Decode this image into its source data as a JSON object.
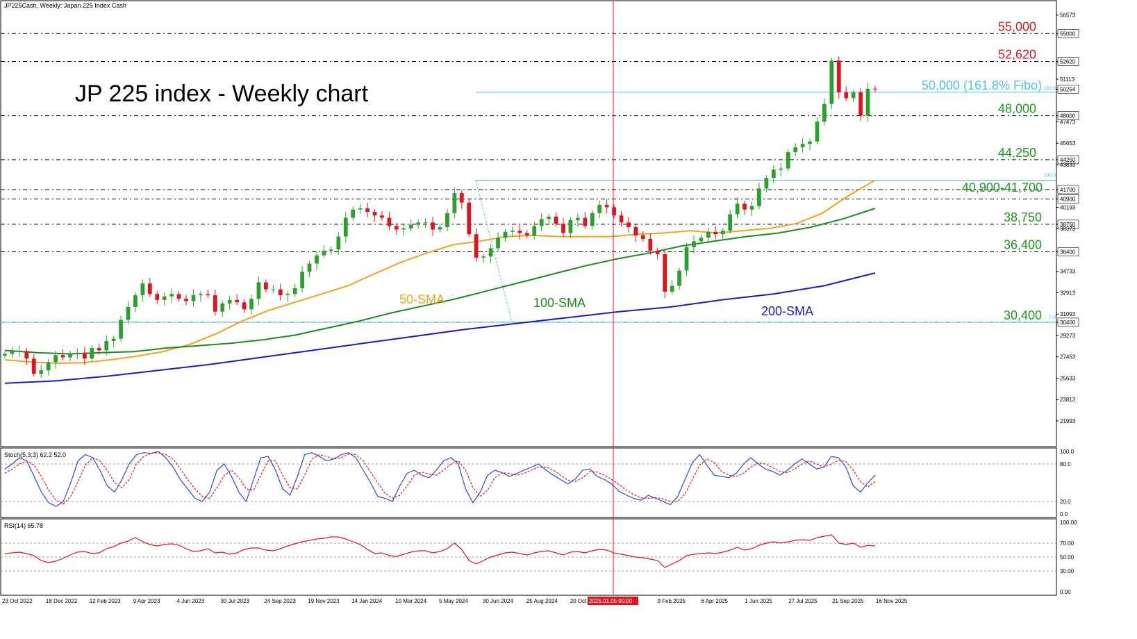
{
  "header": {
    "symbol_line": "JP225Cash, Weekly:  Japan 225 Index Cash",
    "chart_title": "JP 225 index - Weekly chart"
  },
  "colors": {
    "bull": "#2ca02c",
    "bear": "#e0141e",
    "sma50": "#f5a11c",
    "sma100": "#1e8b1e",
    "sma200": "#1a1acb",
    "fibo": "#4fc3e8",
    "level_red": "#e0141e",
    "level_green": "#1a9a1a",
    "stoch_main": "#2c49d6",
    "stoch_signal": "#e0141e",
    "rsi": "#e0141e",
    "crosshair": "#e0141e"
  },
  "chart_data": [
    {
      "type": "line",
      "subtype": "candlestick",
      "title": "JP 225 index - Weekly chart",
      "symbol": "JP225Cash, Weekly:  Japan 225 Index Cash",
      "x_labels": [
        "23 Oct 2022",
        "18 Dec 2022",
        "12 Feb 2023",
        "9 Apr 2023",
        "4 Jun 2023",
        "30 Jul 2023",
        "24 Sep 2023",
        "19 Nov 2023",
        "14 Jan 2024",
        "10 Mar 2024",
        "5 May 2024",
        "30 Jun 2024",
        "25 Aug 2024",
        "20 Oct 2024",
        "2025.01.05 00:00",
        "9 Feb 2025",
        "6 Apr 2025",
        "1 Jun 2025",
        "27 Jul 2025",
        "21 Sep 2025",
        "16 Nov 2025"
      ],
      "y_axis_ticks": [
        "56573",
        "55000",
        "52620",
        "51113",
        "50254",
        "48000",
        "47473",
        "45653",
        "44250",
        "43833",
        "41700",
        "40900",
        "40193",
        "38750",
        "38373",
        "36400",
        "34733",
        "32913",
        "31093",
        "30400",
        "29273",
        "27453",
        "25633",
        "23813",
        "21993"
      ],
      "ylim": [
        19800,
        57800
      ],
      "close_price_label": "50254",
      "closes": [
        27700,
        27900,
        27950,
        27300,
        26000,
        26300,
        27000,
        27600,
        27400,
        27700,
        27800,
        27300,
        28200,
        28000,
        28800,
        29000,
        30600,
        31700,
        32700,
        33700,
        32800,
        32300,
        32600,
        32800,
        32400,
        32200,
        32700,
        32800,
        32700,
        31300,
        32000,
        32300,
        32100,
        31500,
        32400,
        33800,
        33200,
        33200,
        32700,
        32800,
        33300,
        34700,
        35400,
        36100,
        36500,
        36600,
        37700,
        39300,
        40000,
        40100,
        39800,
        39500,
        39300,
        38600,
        38300,
        38400,
        38700,
        38900,
        38900,
        38300,
        38500,
        39700,
        41400,
        40600,
        37900,
        35900,
        36000,
        36700,
        37600,
        38100,
        38200,
        38000,
        37800,
        38600,
        39200,
        39400,
        38800,
        38000,
        39100,
        39300,
        38600,
        39700,
        40400,
        40200,
        39500,
        38900,
        38500,
        37800,
        37500,
        36500,
        36200,
        33000,
        33500,
        34800,
        36800,
        37300,
        37600,
        38100,
        37900,
        38200,
        39600,
        40500,
        40000,
        40300,
        41800,
        42700,
        43400,
        43500,
        44900,
        45300,
        45600,
        45800,
        47500,
        49000,
        52700,
        50000,
        49500,
        50000,
        48000,
        50300,
        50254
      ],
      "sma_series": [
        {
          "name": "50-SMA",
          "start": [
            27200,
            27000,
            26900,
            26950,
            27200,
            27500,
            27900,
            28500,
            29400,
            30500,
            31400,
            32100,
            32800,
            33500,
            34500,
            35500,
            36300,
            37000,
            37300,
            37700,
            37800,
            37700,
            37700,
            37700,
            37900,
            38000,
            38200,
            38000,
            38200,
            38400,
            38800,
            39700,
            41200,
            42500
          ]
        },
        {
          "name": "100-SMA",
          "start": [
            28000,
            27800,
            27700,
            27800,
            27900,
            28200,
            28400,
            28600,
            28900,
            29300,
            29900,
            30500,
            31200,
            31800,
            32400,
            33100,
            33800,
            34500,
            35200,
            35800,
            36300,
            36900,
            37300,
            37700,
            38000,
            38500,
            39200,
            40100
          ]
        },
        {
          "name": "200-SMA",
          "start": [
            25200,
            25400,
            25800,
            26300,
            26800,
            27400,
            28000,
            28600,
            29200,
            29800,
            30300,
            30800,
            31300,
            31700,
            32300,
            32800,
            33500,
            34600
          ]
        }
      ],
      "levels": [
        {
          "label": "55,000",
          "value": 55000,
          "color": "red"
        },
        {
          "label": "52,620",
          "value": 52620,
          "color": "red"
        },
        {
          "label": "48,000",
          "value": 48000,
          "color": "green"
        },
        {
          "label": "44,250",
          "value": 44250,
          "color": "green"
        },
        {
          "label": "40,900-41,700",
          "value": 40900,
          "color": "green"
        },
        {
          "label": "38,750",
          "value": 38750,
          "color": "green"
        },
        {
          "label": "36,400",
          "value": 36400,
          "color": "green"
        },
        {
          "label": "30,400",
          "value": 30400,
          "color": "green"
        }
      ],
      "fibo_label": "50,000 (161.8% Fibo)",
      "fibo_levels": [
        "161.8",
        "100.0",
        "0.0"
      ],
      "ma_labels": [
        "50-SMA",
        "100-SMA",
        "200-SMA"
      ]
    },
    {
      "type": "line",
      "title": "Stoch(5,3,3) 62.2 52.0",
      "y_ticks": [
        "100.0",
        "80.0",
        "20.0",
        "0.0"
      ],
      "ylim": [
        0,
        100
      ],
      "series": [
        {
          "name": "main",
          "values": [
            72,
            80,
            90,
            85,
            60,
            35,
            18,
            12,
            20,
            50,
            85,
            95,
            90,
            70,
            45,
            35,
            55,
            80,
            95,
            98,
            97,
            100,
            90,
            75,
            55,
            40,
            25,
            20,
            35,
            70,
            80,
            60,
            35,
            20,
            55,
            90,
            92,
            70,
            40,
            30,
            60,
            95,
            98,
            92,
            85,
            88,
            95,
            98,
            90,
            70,
            50,
            28,
            25,
            20,
            45,
            65,
            70,
            62,
            58,
            70,
            85,
            90,
            80,
            40,
            18,
            35,
            62,
            70,
            66,
            60,
            65,
            70,
            75,
            80,
            70,
            62,
            55,
            48,
            56,
            70,
            72,
            60,
            55,
            48,
            36,
            30,
            25,
            22,
            30,
            25,
            20,
            15,
            28,
            55,
            82,
            95,
            78,
            62,
            60,
            58,
            65,
            80,
            90,
            80,
            72,
            68,
            62,
            70,
            80,
            88,
            80,
            72,
            75,
            92,
            90,
            75,
            45,
            35,
            50,
            62
          ]
        },
        {
          "name": "signal",
          "values": [
            65,
            72,
            80,
            85,
            78,
            60,
            38,
            22,
            16,
            28,
            52,
            78,
            90,
            85,
            70,
            50,
            42,
            55,
            80,
            92,
            97,
            98,
            95,
            88,
            72,
            55,
            40,
            28,
            25,
            42,
            62,
            70,
            58,
            40,
            38,
            62,
            85,
            85,
            62,
            42,
            40,
            62,
            88,
            95,
            92,
            88,
            90,
            96,
            95,
            85,
            67,
            50,
            33,
            25,
            30,
            45,
            62,
            67,
            64,
            62,
            70,
            80,
            85,
            70,
            42,
            28,
            38,
            58,
            66,
            65,
            62,
            65,
            70,
            75,
            75,
            70,
            62,
            54,
            52,
            58,
            68,
            67,
            62,
            55,
            47,
            38,
            31,
            26,
            25,
            26,
            24,
            20,
            20,
            32,
            55,
            78,
            88,
            82,
            68,
            62,
            60,
            65,
            75,
            82,
            80,
            74,
            68,
            66,
            72,
            80,
            85,
            80,
            75,
            80,
            86,
            84,
            70,
            52,
            43,
            52
          ]
        }
      ]
    },
    {
      "type": "line",
      "title": "RSI(14) 65.78",
      "y_ticks": [
        "100.00",
        "70.00",
        "50.00",
        "30.00",
        "0.00"
      ],
      "ylim": [
        0,
        100
      ],
      "series": [
        {
          "name": "RSI(14)",
          "values": [
            55,
            56,
            57,
            55,
            52,
            45,
            42,
            44,
            48,
            53,
            57,
            58,
            55,
            56,
            62,
            65,
            70,
            73,
            78,
            72,
            68,
            66,
            68,
            69,
            67,
            62,
            58,
            59,
            62,
            56,
            57,
            54,
            56,
            61,
            63,
            63,
            60,
            59,
            62,
            66,
            69,
            72,
            74,
            76,
            77,
            79,
            79,
            76,
            72,
            68,
            61,
            55,
            56,
            52,
            51,
            54,
            57,
            59,
            59,
            56,
            58,
            62,
            70,
            61,
            45,
            40,
            45,
            50,
            53,
            56,
            57,
            55,
            53,
            56,
            58,
            59,
            56,
            53,
            57,
            58,
            56,
            59,
            61,
            60,
            56,
            54,
            52,
            50,
            49,
            47,
            45,
            35,
            40,
            45,
            52,
            54,
            55,
            56,
            55,
            57,
            60,
            64,
            60,
            62,
            67,
            70,
            72,
            70,
            72,
            74,
            75,
            74,
            78,
            80,
            82,
            70,
            68,
            70,
            64,
            67,
            66
          ]
        }
      ]
    }
  ]
}
